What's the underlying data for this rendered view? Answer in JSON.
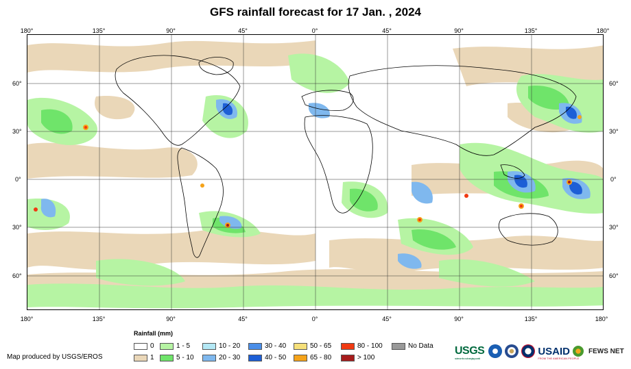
{
  "title": "GFS rainfall forecast for 17 Jan. , 2024",
  "longitude_labels": [
    "180°",
    "135°",
    "90°",
    "45°",
    "0°",
    "45°",
    "90°",
    "135°",
    "180°"
  ],
  "latitude_labels": [
    "60°",
    "30°",
    "0°",
    "30°",
    "60°"
  ],
  "legend": {
    "title": "Rainfall (mm)",
    "items": [
      {
        "label": "0",
        "color": "#ffffff"
      },
      {
        "label": "1",
        "color": "#ead7b8"
      },
      {
        "label": "1 - 5",
        "color": "#b6f4a3"
      },
      {
        "label": "5 - 10",
        "color": "#6fe46a"
      },
      {
        "label": "10 - 20",
        "color": "#b4e8f5"
      },
      {
        "label": "20 - 30",
        "color": "#7fb8ee"
      },
      {
        "label": "30 - 40",
        "color": "#4a8ee8"
      },
      {
        "label": "40 - 50",
        "color": "#1d5fd6"
      },
      {
        "label": "50 - 65",
        "color": "#f6e07a"
      },
      {
        "label": "65 - 80",
        "color": "#f5a31a"
      },
      {
        "label": "80 - 100",
        "color": "#f03a12"
      },
      {
        "label": "> 100",
        "color": "#a71c1c"
      },
      {
        "label": "No Data",
        "color": "#999999"
      }
    ]
  },
  "credit": "Map produced by USGS/EROS",
  "logos": {
    "usgs": "USGS",
    "usgs_tagline": "science for a changing world",
    "noaa": "noaa-seal-icon",
    "state": "state-seal-icon",
    "usaid": "USAID",
    "usaid_tagline": "FROM THE AMERICAN PEOPLE",
    "fews": "FEWS NET"
  }
}
